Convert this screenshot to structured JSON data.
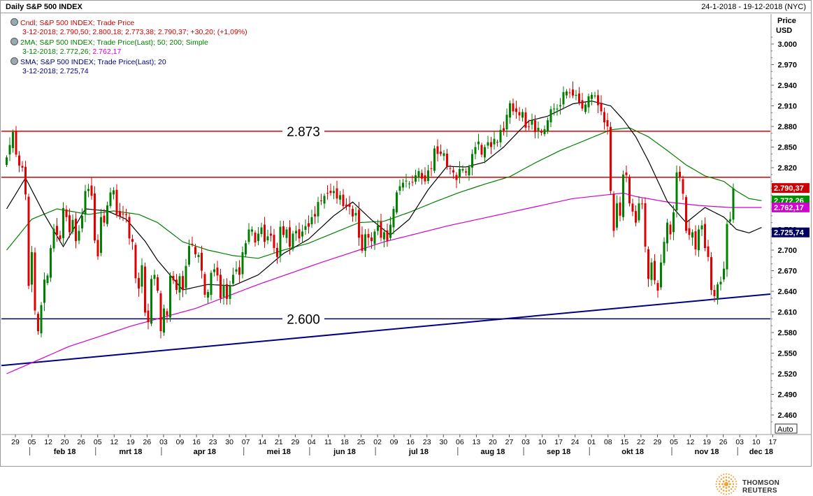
{
  "header": {
    "title": "Daily S&P 500 INDEX",
    "date_range": "24-1-2018 - 19-12-2018 (NYC)"
  },
  "legend": [
    {
      "line1": "Cndl; S&P 500 INDEX; Trade Price",
      "line2": "3-12-2018; 2.790,50; 2.800,18; 2.773,38; 2.790,37; +30,20; (+1,09%)",
      "color": "#d00000"
    },
    {
      "line1": "2MA; S&P 500 INDEX; Trade Price(Last);  50; 200; Simple",
      "line2a": "3-12-2018; 2.772,26; ",
      "line2b": "2.762,17",
      "color": "#008000",
      "color2": "#d000d0"
    },
    {
      "line1": "SMA; S&P 500 INDEX; Trade Price(Last);  20",
      "line2": "3-12-2018; 2.725,74",
      "color": "#000080"
    }
  ],
  "axis": {
    "price_label": "Price",
    "currency_label": "USD",
    "auto_label": "Auto"
  },
  "annotations": {
    "resistance_label": "2.873",
    "support_label": "2.600"
  },
  "footer": {
    "brand": "THOMSON REUTERS"
  },
  "colors": {
    "up": "#008000",
    "down": "#e00000",
    "sma20": "#000000",
    "ma50": "#008000",
    "ma200": "#d000d0",
    "hline_red": "#e00000",
    "hline_navy": "#000060",
    "trendline": "#000080"
  },
  "chart_data": {
    "type": "candlestick",
    "y_ticks": [
      "3.000",
      "2.970",
      "2.940",
      "2.910",
      "2.880",
      "2.850",
      "2.820",
      "2.790",
      "2.760",
      "2.730",
      "2.700",
      "2.670",
      "2.640",
      "2.610",
      "2.580",
      "2.550",
      "2.520",
      "2.490",
      "2.460"
    ],
    "ylim": [
      2443,
      3010
    ],
    "x_day_labels": [
      "29",
      "05",
      "12",
      "20",
      "26",
      "05",
      "12",
      "19",
      "26",
      "03",
      "09",
      "16",
      "23",
      "30",
      "07",
      "14",
      "21",
      "29",
      "04",
      "11",
      "18",
      "25",
      "02",
      "09",
      "16",
      "23",
      "30",
      "06",
      "13",
      "20",
      "27",
      "03",
      "10",
      "17",
      "24",
      "01",
      "08",
      "15",
      "22",
      "29",
      "05",
      "12",
      "19",
      "26",
      "03",
      "10",
      "17"
    ],
    "x_month_labels": [
      "feb 18",
      "mrt 18",
      "apr 18",
      "mei 18",
      "jun 18",
      "jul 18",
      "aug 18",
      "sep 18",
      "okt 18",
      "nov 18",
      "dec 18"
    ],
    "last_values": [
      {
        "name": "Close",
        "value": "2.790,37",
        "y": 2790.37,
        "color": "#cc0000",
        "text_color": "#ffffff"
      },
      {
        "name": "MA50",
        "value": "2.772,26",
        "y": 2772.26,
        "color": "#009000",
        "text_color": "#ffffff"
      },
      {
        "name": "MA200",
        "value": "2.762,17",
        "y": 2762.17,
        "color": "#d000d0",
        "text_color": "#ffffff"
      },
      {
        "name": "SMA20",
        "value": "2.725,74",
        "y": 2725.74,
        "color": "#000060",
        "text_color": "#ffffff"
      }
    ],
    "horizontal_lines": [
      {
        "y": 2873,
        "color": "#e00000",
        "label": "2.873"
      },
      {
        "y": 2806,
        "color": "#e00000"
      },
      {
        "y": 2600,
        "color": "#000060",
        "label": "2.600"
      }
    ],
    "trendline": {
      "from": {
        "date": "2018-01-24",
        "y": 2532
      },
      "to": {
        "date": "2018-12-19",
        "y": 2636
      }
    },
    "closes": [
      2835,
      2853,
      2872,
      2839,
      2823,
      2820,
      2781,
      2648,
      2697,
      2612,
      2582,
      2620,
      2657,
      2663,
      2703,
      2731,
      2722,
      2716,
      2761,
      2748,
      2726,
      2744,
      2713,
      2728,
      2750,
      2786,
      2789,
      2779,
      2714,
      2691,
      2748,
      2740,
      2765,
      2784,
      2787,
      2752,
      2749,
      2752,
      2751,
      2717,
      2712,
      2659,
      2644,
      2678,
      2609,
      2595,
      2658,
      2664,
      2641,
      2582,
      2615,
      2605,
      2663,
      2656,
      2642,
      2662,
      2642,
      2677,
      2706,
      2708,
      2694,
      2693,
      2670,
      2635,
      2639,
      2667,
      2672,
      2663,
      2630,
      2649,
      2629,
      2648,
      2664,
      2672,
      2664,
      2697,
      2710,
      2730,
      2730,
      2711,
      2724,
      2733,
      2712,
      2720,
      2721,
      2703,
      2690,
      2734,
      2722,
      2730,
      2705,
      2724,
      2728,
      2717,
      2727,
      2735,
      2734,
      2748,
      2749,
      2770,
      2772,
      2779,
      2783,
      2783,
      2786,
      2775,
      2780,
      2764,
      2763,
      2763,
      2749,
      2754,
      2718,
      2699,
      2723,
      2718,
      2713,
      2727,
      2736,
      2718,
      2726,
      2713,
      2737,
      2760,
      2784,
      2793,
      2798,
      2801,
      2797,
      2799,
      2809,
      2815,
      2804,
      2800,
      2816,
      2819,
      2848,
      2840,
      2840,
      2841,
      2822,
      2819,
      2813,
      2802,
      2818,
      2818,
      2813,
      2821,
      2840,
      2850,
      2858,
      2839,
      2850,
      2857,
      2850,
      2862,
      2857,
      2875,
      2874,
      2897,
      2914,
      2902,
      2901,
      2896,
      2901,
      2878,
      2880,
      2889,
      2872,
      2878,
      2871,
      2876,
      2889,
      2905,
      2906,
      2906,
      2911,
      2930,
      2931,
      2929,
      2925,
      2926,
      2915,
      2906,
      2912,
      2924,
      2926,
      2925,
      2911,
      2902,
      2886,
      2880,
      2786,
      2728,
      2768,
      2750,
      2810,
      2809,
      2768,
      2756,
      2740,
      2768,
      2767,
      2705,
      2658,
      2682,
      2656,
      2641,
      2682,
      2712,
      2740,
      2723,
      2755,
      2813,
      2806,
      2782,
      2728,
      2722,
      2726,
      2701,
      2730,
      2736,
      2703,
      2690,
      2642,
      2633,
      2650,
      2654,
      2673,
      2738,
      2745,
      2790
    ],
    "sma20_anchors": [
      [
        0,
        2760
      ],
      [
        6,
        2805
      ],
      [
        12,
        2752
      ],
      [
        18,
        2705
      ],
      [
        25,
        2760
      ],
      [
        32,
        2757
      ],
      [
        38,
        2745
      ],
      [
        44,
        2713
      ],
      [
        48,
        2685
      ],
      [
        56,
        2642
      ],
      [
        64,
        2650
      ],
      [
        72,
        2648
      ],
      [
        80,
        2664
      ],
      [
        88,
        2695
      ],
      [
        96,
        2716
      ],
      [
        104,
        2750
      ],
      [
        110,
        2770
      ],
      [
        116,
        2744
      ],
      [
        122,
        2722
      ],
      [
        128,
        2745
      ],
      [
        134,
        2788
      ],
      [
        140,
        2822
      ],
      [
        146,
        2821
      ],
      [
        152,
        2828
      ],
      [
        158,
        2850
      ],
      [
        166,
        2888
      ],
      [
        172,
        2895
      ],
      [
        180,
        2913
      ],
      [
        186,
        2917
      ],
      [
        192,
        2910
      ],
      [
        196,
        2890
      ],
      [
        200,
        2865
      ],
      [
        204,
        2830
      ],
      [
        210,
        2771
      ],
      [
        216,
        2740
      ],
      [
        222,
        2762
      ],
      [
        228,
        2748
      ],
      [
        232,
        2730
      ],
      [
        236,
        2725
      ],
      [
        240,
        2733
      ]
    ],
    "ma50_anchors": [
      [
        0,
        2700
      ],
      [
        8,
        2745
      ],
      [
        16,
        2760
      ],
      [
        26,
        2752
      ],
      [
        34,
        2757
      ],
      [
        42,
        2752
      ],
      [
        48,
        2740
      ],
      [
        56,
        2712
      ],
      [
        64,
        2700
      ],
      [
        72,
        2692
      ],
      [
        80,
        2688
      ],
      [
        88,
        2700
      ],
      [
        96,
        2710
      ],
      [
        104,
        2725
      ],
      [
        112,
        2740
      ],
      [
        120,
        2742
      ],
      [
        128,
        2755
      ],
      [
        136,
        2770
      ],
      [
        144,
        2784
      ],
      [
        152,
        2796
      ],
      [
        160,
        2807
      ],
      [
        168,
        2827
      ],
      [
        176,
        2845
      ],
      [
        184,
        2860
      ],
      [
        192,
        2875
      ],
      [
        198,
        2878
      ],
      [
        204,
        2865
      ],
      [
        210,
        2845
      ],
      [
        216,
        2824
      ],
      [
        222,
        2808
      ],
      [
        228,
        2800
      ],
      [
        232,
        2786
      ],
      [
        236,
        2775
      ],
      [
        240,
        2772
      ]
    ],
    "ma200_anchors": [
      [
        0,
        2520
      ],
      [
        20,
        2560
      ],
      [
        40,
        2590
      ],
      [
        60,
        2615
      ],
      [
        80,
        2650
      ],
      [
        100,
        2682
      ],
      [
        120,
        2712
      ],
      [
        140,
        2735
      ],
      [
        160,
        2755
      ],
      [
        180,
        2775
      ],
      [
        196,
        2783
      ],
      [
        200,
        2778
      ],
      [
        210,
        2770
      ],
      [
        220,
        2765
      ],
      [
        230,
        2762
      ],
      [
        240,
        2762
      ]
    ]
  }
}
